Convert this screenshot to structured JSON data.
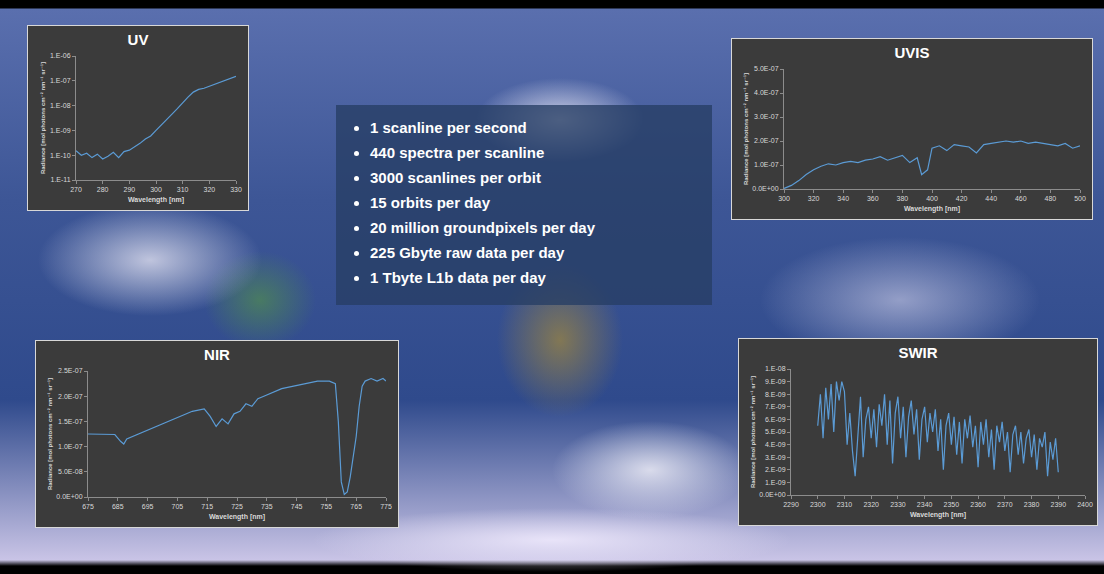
{
  "chart_data": [
    {
      "type": "line",
      "title": "UV",
      "x_label": "Wavelength [nm]",
      "y_label": "Radiance [mol photons cm⁻² nm⁻¹ sr⁻¹]",
      "color": "#5b9bd5",
      "log": "y",
      "grid": false,
      "x": [
        270,
        272,
        274,
        276,
        278,
        280,
        282,
        284,
        286,
        288,
        290,
        292,
        294,
        296,
        298,
        300,
        302,
        304,
        306,
        308,
        310,
        312,
        314,
        316,
        318,
        320,
        322,
        324,
        326,
        328,
        330
      ],
      "values": [
        1.5e-10,
        1e-10,
        1.2e-10,
        8e-11,
        1.1e-10,
        7e-11,
        9e-11,
        1.3e-10,
        8e-11,
        1.4e-10,
        1.6e-10,
        2.2e-10,
        3e-10,
        4.5e-10,
        6e-10,
        1e-09,
        1.6e-09,
        2.8e-09,
        4.5e-09,
        7.5e-09,
        1.3e-08,
        2.2e-08,
        3.5e-08,
        4.5e-08,
        5e-08,
        6e-08,
        7e-08,
        8.5e-08,
        1e-07,
        1.2e-07,
        1.5e-07
      ],
      "xlim": [
        270,
        330
      ],
      "xticks": [
        270,
        280,
        290,
        300,
        310,
        320,
        330
      ],
      "ylim": [
        1e-11,
        1e-06
      ],
      "yticks": [
        {
          "value": 1e-11,
          "label": "1.E-11"
        },
        {
          "value": 1e-10,
          "label": "1.E-10"
        },
        {
          "value": 1e-09,
          "label": "1.E-09"
        },
        {
          "value": 1e-08,
          "label": "1.E-08"
        },
        {
          "value": 1e-07,
          "label": "1.E-07"
        },
        {
          "value": 1e-06,
          "label": "1.E-06"
        }
      ]
    },
    {
      "type": "line",
      "title": "UVIS",
      "x_label": "Wavelength [nm]",
      "y_label": "Radiance [mol photons cm⁻² nm⁻¹ sr⁻¹]",
      "color": "#5b9bd5",
      "grid": false,
      "x": [
        300,
        305,
        310,
        315,
        320,
        325,
        330,
        335,
        340,
        345,
        350,
        355,
        360,
        365,
        370,
        375,
        380,
        385,
        390,
        393,
        397,
        400,
        405,
        410,
        415,
        420,
        425,
        430,
        435,
        440,
        445,
        450,
        455,
        460,
        465,
        470,
        475,
        480,
        485,
        490,
        495,
        500
      ],
      "values": [
        2e-09,
        1.5e-08,
        3.5e-08,
        6e-08,
        8e-08,
        9.5e-08,
        1.05e-07,
        1e-07,
        1.1e-07,
        1.15e-07,
        1.1e-07,
        1.2e-07,
        1.25e-07,
        1.35e-07,
        1.2e-07,
        1.3e-07,
        1.4e-07,
        1.1e-07,
        1.3e-07,
        6e-08,
        8e-08,
        1.7e-07,
        1.8e-07,
        1.6e-07,
        1.85e-07,
        1.8e-07,
        1.75e-07,
        1.5e-07,
        1.85e-07,
        1.9e-07,
        1.95e-07,
        2e-07,
        1.95e-07,
        2e-07,
        1.9e-07,
        1.95e-07,
        1.9e-07,
        1.85e-07,
        1.8e-07,
        1.9e-07,
        1.7e-07,
        1.8e-07
      ],
      "xlim": [
        300,
        500
      ],
      "xticks": [
        300,
        320,
        340,
        360,
        380,
        400,
        420,
        440,
        460,
        480,
        500
      ],
      "ylim": [
        0,
        5e-07
      ],
      "yticks": [
        {
          "value": 0,
          "label": "0.0E+00"
        },
        {
          "value": 1e-07,
          "label": "1.0E-07"
        },
        {
          "value": 2e-07,
          "label": "2.0E-07"
        },
        {
          "value": 3e-07,
          "label": "3.0E-07"
        },
        {
          "value": 4e-07,
          "label": "4.0E-07"
        },
        {
          "value": 5e-07,
          "label": "5.0E-07"
        }
      ]
    },
    {
      "type": "line",
      "title": "NIR",
      "x_label": "Wavelength [nm]",
      "y_label": "Radiance [mol photons cm⁻² nm⁻¹ sr⁻¹]",
      "color": "#5b9bd5",
      "grid": false,
      "x": [
        675,
        680,
        684,
        686,
        687,
        688,
        690,
        694,
        698,
        702,
        706,
        710,
        714,
        716,
        718,
        720,
        722,
        724,
        726,
        728,
        730,
        732,
        734,
        736,
        738,
        740,
        744,
        748,
        752,
        756,
        758,
        759,
        760,
        761,
        762,
        763,
        764,
        765,
        766,
        767,
        768,
        770,
        772,
        774,
        775
      ],
      "values": [
        1.25e-07,
        1.25e-07,
        1.24e-07,
        1.1e-07,
        1.05e-07,
        1.15e-07,
        1.2e-07,
        1.3e-07,
        1.4e-07,
        1.5e-07,
        1.6e-07,
        1.7e-07,
        1.75e-07,
        1.6e-07,
        1.4e-07,
        1.55e-07,
        1.45e-07,
        1.65e-07,
        1.7e-07,
        1.85e-07,
        1.8e-07,
        1.95e-07,
        2e-07,
        2.05e-07,
        2.1e-07,
        2.15e-07,
        2.2e-07,
        2.25e-07,
        2.3e-07,
        2.3e-07,
        2.25e-07,
        1.5e-07,
        3e-08,
        5e-09,
        1e-08,
        4e-08,
        8e-08,
        1.2e-07,
        1.8e-07,
        2.2e-07,
        2.3e-07,
        2.35e-07,
        2.3e-07,
        2.35e-07,
        2.3e-07
      ],
      "xlim": [
        675,
        775
      ],
      "xticks": [
        675,
        685,
        695,
        705,
        715,
        725,
        735,
        745,
        755,
        765,
        775
      ],
      "ylim": [
        0,
        2.5e-07
      ],
      "yticks": [
        {
          "value": 0,
          "label": "0.0E+00"
        },
        {
          "value": 5e-08,
          "label": "5.0E-08"
        },
        {
          "value": 1e-07,
          "label": "1.0E-07"
        },
        {
          "value": 1.5e-07,
          "label": "1.5E-07"
        },
        {
          "value": 2e-07,
          "label": "2.0E-07"
        },
        {
          "value": 2.5e-07,
          "label": "2.5E-07"
        }
      ]
    },
    {
      "type": "line",
      "title": "SWIR",
      "x_label": "Wavelength [nm]",
      "y_label": "Radiance [mol photons cm⁻² nm⁻¹ sr⁻¹]",
      "color": "#5b9bd5",
      "grid": false,
      "x": [
        2300,
        2301,
        2302,
        2303,
        2304,
        2305,
        2306,
        2307,
        2308,
        2309,
        2310,
        2311,
        2312,
        2313,
        2314,
        2315,
        2316,
        2317,
        2318,
        2319,
        2320,
        2321,
        2322,
        2323,
        2324,
        2325,
        2326,
        2327,
        2328,
        2329,
        2330,
        2331,
        2332,
        2333,
        2334,
        2335,
        2336,
        2337,
        2338,
        2339,
        2340,
        2341,
        2342,
        2343,
        2344,
        2345,
        2346,
        2347,
        2348,
        2349,
        2350,
        2351,
        2352,
        2353,
        2354,
        2355,
        2356,
        2357,
        2358,
        2359,
        2360,
        2361,
        2362,
        2363,
        2364,
        2365,
        2366,
        2367,
        2368,
        2369,
        2370,
        2371,
        2372,
        2373,
        2374,
        2375,
        2376,
        2377,
        2378,
        2379,
        2380,
        2381,
        2382,
        2383,
        2384,
        2385,
        2386,
        2387,
        2388,
        2389,
        2390
      ],
      "values": [
        5.5e-09,
        8e-09,
        4.5e-09,
        8.5e-09,
        6e-09,
        8.8e-09,
        5e-09,
        9e-09,
        7.5e-09,
        9e-09,
        8.2e-09,
        4e-09,
        6.5e-09,
        3.5e-09,
        1.5e-09,
        5e-09,
        7.8e-09,
        3e-09,
        6e-09,
        7e-09,
        4.5e-09,
        6.8e-09,
        3.8e-09,
        7.2e-09,
        5.5e-09,
        8e-09,
        4e-09,
        7.5e-09,
        2.5e-09,
        6.5e-09,
        7.8e-09,
        4.5e-09,
        7e-09,
        3e-09,
        6.2e-09,
        7.5e-09,
        4.8e-09,
        6.8e-09,
        2.8e-09,
        6e-09,
        7e-09,
        4.2e-09,
        6.5e-09,
        5e-09,
        6.8e-09,
        3.5e-09,
        6e-09,
        2e-09,
        5.5e-09,
        6.5e-09,
        4e-09,
        6.2e-09,
        3.2e-09,
        5.8e-09,
        2.5e-09,
        6e-09,
        4.5e-09,
        6.3e-09,
        3.8e-09,
        5.5e-09,
        2.2e-09,
        5.8e-09,
        4e-09,
        6e-09,
        3e-09,
        5.2e-09,
        2e-09,
        5.5e-09,
        4.2e-09,
        5.8e-09,
        3.5e-09,
        5e-09,
        1.8e-09,
        4.8e-09,
        5.5e-09,
        3.2e-09,
        5e-09,
        2.5e-09,
        4.5e-09,
        5.2e-09,
        3e-09,
        4.8e-09,
        2e-09,
        4.5e-09,
        3.8e-09,
        5e-09,
        1.5e-09,
        4.2e-09,
        2.8e-09,
        4.5e-09,
        1.8e-09
      ],
      "xlim": [
        2290,
        2400
      ],
      "xticks": [
        2290,
        2300,
        2310,
        2320,
        2330,
        2340,
        2350,
        2360,
        2370,
        2380,
        2390,
        2400
      ],
      "ylim": [
        0,
        1e-08
      ],
      "yticks": [
        {
          "value": 0,
          "label": "0.0E+00"
        },
        {
          "value": 1e-09,
          "label": "1.E-09"
        },
        {
          "value": 2e-09,
          "label": "2.E-09"
        },
        {
          "value": 3e-09,
          "label": "3.E-09"
        },
        {
          "value": 4e-09,
          "label": "4.E-09"
        },
        {
          "value": 5e-09,
          "label": "5.E-09"
        },
        {
          "value": 6e-09,
          "label": "6.E-09"
        },
        {
          "value": 7e-09,
          "label": "7.E-09"
        },
        {
          "value": 8e-09,
          "label": "8.E-09"
        },
        {
          "value": 9e-09,
          "label": "9.E-09"
        },
        {
          "value": 1e-08,
          "label": "1.E-08"
        }
      ]
    }
  ],
  "text_box": {
    "items": [
      "1 scanline per second",
      "440 spectra per scanline",
      "3000 scanlines per orbit",
      "15 orbits per day",
      "20 million groundpixels per day",
      "225 Gbyte raw data per day",
      "1 Tbyte L1b data per day"
    ]
  }
}
